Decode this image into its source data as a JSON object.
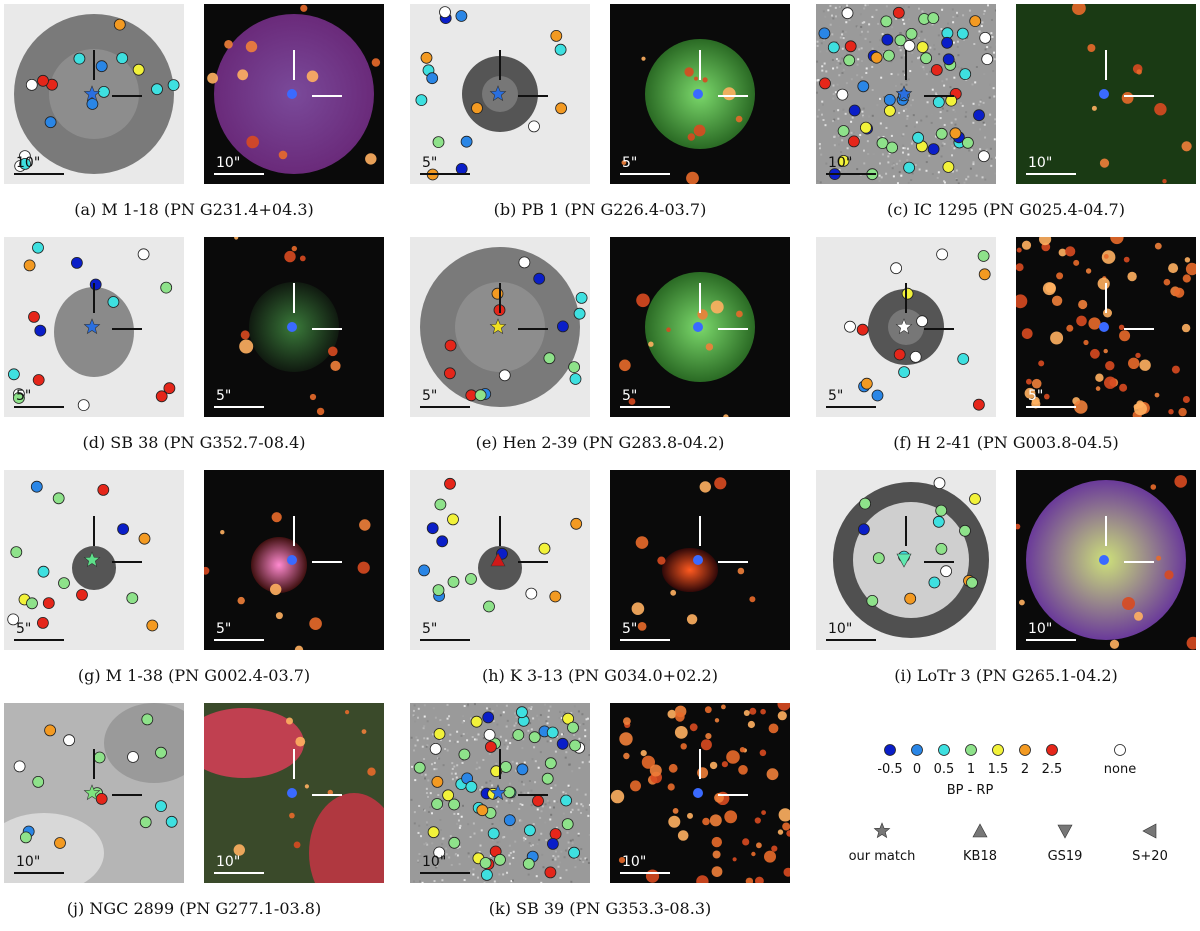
{
  "panels": [
    {
      "caption": "(a) M 1-18 (PN G231.4+04.3)",
      "scale": "10\"",
      "bg": "light",
      "nebula": "ring",
      "rgb": "purple",
      "match": "star",
      "matchColor": "#2a6fe0"
    },
    {
      "caption": "(b) PB 1 (PN G226.4-03.7)",
      "scale": "5\"",
      "bg": "light",
      "nebula": "disk",
      "rgb": "green",
      "match": "star",
      "matchColor": "#2a6fe0"
    },
    {
      "caption": "(c) IC 1295 (PN G025.4-04.7)",
      "scale": "10\"",
      "bg": "noisy",
      "nebula": "none",
      "rgb": "darkgreen",
      "match": "star",
      "matchColor": "#2a6fe0"
    },
    {
      "caption": "(d) SB 38 (PN G352.7-08.4)",
      "scale": "5\"",
      "bg": "light",
      "nebula": "blob",
      "rgb": "dark",
      "match": "star",
      "matchColor": "#2a6fe0"
    },
    {
      "caption": "(e) Hen 2-39 (PN G283.8-04.2)",
      "scale": "5\"",
      "bg": "light",
      "nebula": "ring",
      "rgb": "green",
      "match": "star",
      "matchColor": "#f0e020"
    },
    {
      "caption": "(f) H 2-41 (PN G003.8-04.5)",
      "scale": "5\"",
      "bg": "light",
      "nebula": "disk",
      "rgb": "starfield",
      "match": "star",
      "matchColor": "#ffffff"
    },
    {
      "caption": "(g) M 1-38 (PN G002.4-03.7)",
      "scale": "5\"",
      "bg": "light",
      "nebula": "small",
      "rgb": "pinkcore",
      "match": "star",
      "matchColor": "#5ee08a"
    },
    {
      "caption": "(h) K 3-13 (PN G034.0+02.2)",
      "scale": "5\"",
      "bg": "light",
      "nebula": "small",
      "rgb": "redblob",
      "match": "triangle-up",
      "matchColor": "#d01818"
    },
    {
      "caption": "(i) LoTr 3 (PN G265.1-04.2)",
      "scale": "10\"",
      "bg": "light",
      "nebula": "bigring",
      "rgb": "purplering",
      "match": "triangle-down",
      "matchColor": "#60e8b0"
    },
    {
      "caption": "(j) NGC 2899 (PN G277.1-03.8)",
      "scale": "10\"",
      "bg": "gray",
      "nebula": "none",
      "rgb": "redgreen",
      "match": "star",
      "matchColor": "#7ee27e"
    },
    {
      "caption": "(k) SB 39 (PN G353.3-08.3)",
      "scale": "10\"",
      "bg": "noisy",
      "nebula": "none",
      "rgb": "starfield",
      "match": "star",
      "matchColor": "#2a6fe0"
    }
  ],
  "legend": {
    "colorbar": [
      {
        "label": "-0.5",
        "color": "#0a1ec8"
      },
      {
        "label": "0",
        "color": "#2a86e6"
      },
      {
        "label": "0.5",
        "color": "#3ee0e0"
      },
      {
        "label": "1",
        "color": "#8ee28a"
      },
      {
        "label": "1.5",
        "color": "#f2f23a"
      },
      {
        "label": "2",
        "color": "#f39a22"
      },
      {
        "label": "2.5",
        "color": "#e5261a"
      },
      {
        "label": "none",
        "color": "#ffffff"
      }
    ],
    "axis_label": "BP - RP",
    "markers": [
      {
        "label": "our match",
        "shape": "star"
      },
      {
        "label": "KB18",
        "shape": "triangle-up"
      },
      {
        "label": "GS19",
        "shape": "triangle-down"
      },
      {
        "label": "S+20",
        "shape": "triangle-left"
      }
    ]
  }
}
